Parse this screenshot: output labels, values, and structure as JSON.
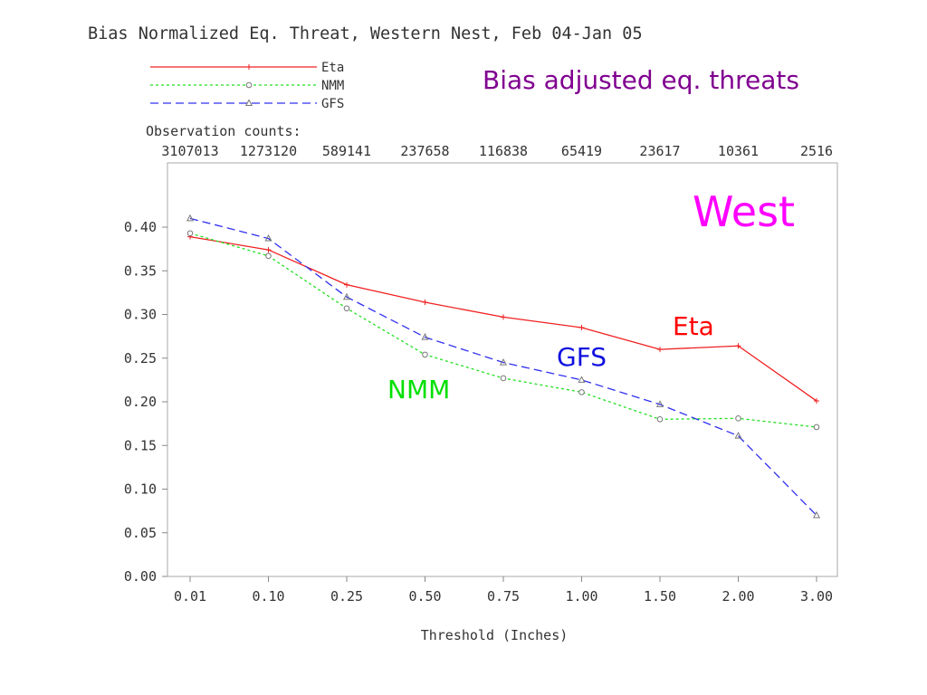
{
  "chart_data": {
    "type": "line",
    "title": "Bias Normalized Eq. Threat, Western Nest, Feb 04-Jan 05",
    "xlabel": "Threshold (Inches)",
    "ylabel": "",
    "categories": [
      "0.01",
      "0.10",
      "0.25",
      "0.50",
      "0.75",
      "1.00",
      "1.50",
      "2.00",
      "3.00"
    ],
    "ylim": [
      0.0,
      0.4
    ],
    "yticks": [
      "0.00",
      "0.05",
      "0.10",
      "0.15",
      "0.20",
      "0.25",
      "0.30",
      "0.35",
      "0.40"
    ],
    "observation_counts_label": "Observation counts:",
    "observation_counts": [
      "3107013",
      "1273120",
      "589141",
      "237658",
      "116838",
      "65419",
      "23617",
      "10361",
      "2516"
    ],
    "series": [
      {
        "name": "Eta",
        "color": "#f02020",
        "dash": "solid",
        "marker": "plus",
        "values": [
          0.389,
          0.374,
          0.334,
          0.314,
          0.297,
          0.285,
          0.26,
          0.264,
          0.201
        ]
      },
      {
        "name": "NMM",
        "color": "#20e020",
        "dash": "dotted",
        "marker": "circle",
        "values": [
          0.393,
          0.367,
          0.307,
          0.254,
          0.227,
          0.211,
          0.18,
          0.181,
          0.171
        ]
      },
      {
        "name": "GFS",
        "color": "#3030f0",
        "dash": "dashed",
        "marker": "triangle",
        "values": [
          0.41,
          0.387,
          0.32,
          0.274,
          0.245,
          0.225,
          0.197,
          0.161,
          0.07
        ]
      }
    ],
    "legend_position": "top-left",
    "grid": false
  },
  "annotations": {
    "subtitle": "Bias adjusted eq. threats",
    "subtitle_color": "#800090",
    "region": "West",
    "region_color": "#ff00ff",
    "eta_label": "Eta",
    "eta_color": "#ff0000",
    "gfs_label": "GFS",
    "gfs_color": "#1010e0",
    "nmm_label": "NMM",
    "nmm_color": "#00e000"
  }
}
